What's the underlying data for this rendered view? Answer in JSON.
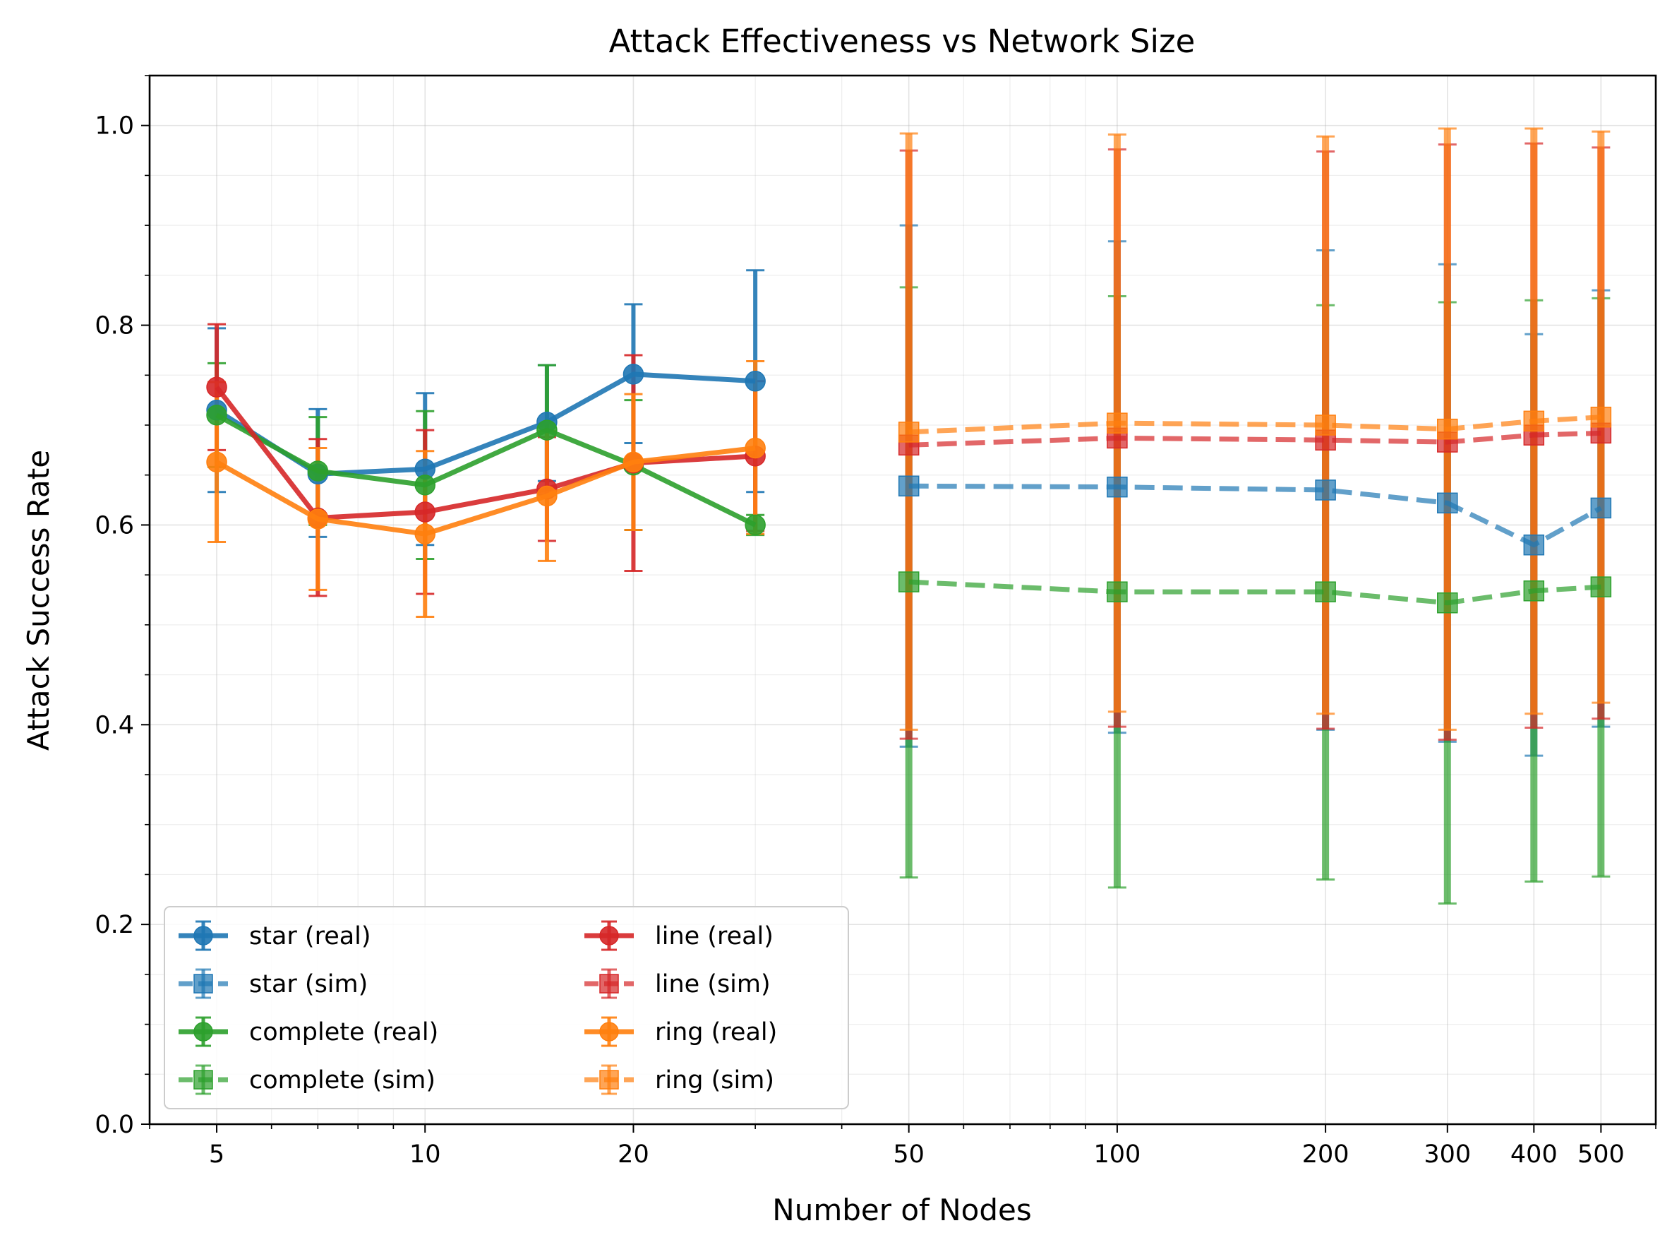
{
  "chart_data": {
    "type": "line",
    "title": "Attack Effectiveness vs Network Size",
    "xlabel": "Number of Nodes",
    "ylabel": "Attack Success Rate",
    "xscale": "log",
    "xlim": [
      4,
      600
    ],
    "ylim": [
      0,
      1.05
    ],
    "grid": true,
    "legend_position": "lower-left",
    "legend_columns": 2,
    "x_tick_labels": [
      "5",
      "10",
      "20",
      "50",
      "100",
      "200",
      "300",
      "400",
      "500"
    ],
    "x_tick_values": [
      5,
      10,
      20,
      50,
      100,
      200,
      300,
      400,
      500
    ],
    "y_tick_labels": [
      "0.0",
      "0.2",
      "0.4",
      "0.6",
      "0.8",
      "1.0"
    ],
    "y_tick_values": [
      0,
      0.2,
      0.4,
      0.6,
      0.8,
      1.0
    ],
    "series": [
      {
        "name": "star (real)",
        "color": "#1f77b4",
        "marker": "circle",
        "linestyle": "solid",
        "x": [
          5,
          7,
          10,
          15,
          20,
          30
        ],
        "y": [
          0.715,
          0.651,
          0.656,
          0.703,
          0.751,
          0.744
        ],
        "err_low": [
          0.633,
          0.588,
          0.58,
          0.644,
          0.682,
          0.633
        ],
        "err_high": [
          0.797,
          0.716,
          0.732,
          0.76,
          0.821,
          0.855
        ]
      },
      {
        "name": "star (sim)",
        "color": "#1f77b4",
        "marker": "square",
        "linestyle": "dashed",
        "x": [
          50,
          100,
          200,
          300,
          400,
          500
        ],
        "y": [
          0.639,
          0.638,
          0.635,
          0.622,
          0.58,
          0.617
        ],
        "err_low": [
          0.378,
          0.392,
          0.395,
          0.383,
          0.369,
          0.398
        ],
        "err_high": [
          0.9,
          0.884,
          0.875,
          0.861,
          0.791,
          0.835
        ]
      },
      {
        "name": "complete (real)",
        "color": "#2ca02c",
        "marker": "circle",
        "linestyle": "solid",
        "x": [
          5,
          7,
          10,
          15,
          20,
          30
        ],
        "y": [
          0.71,
          0.654,
          0.64,
          0.695,
          0.66,
          0.6
        ],
        "err_low": [
          0.658,
          0.6,
          0.566,
          0.63,
          0.595,
          0.59
        ],
        "err_high": [
          0.762,
          0.708,
          0.714,
          0.76,
          0.725,
          0.61
        ]
      },
      {
        "name": "complete (sim)",
        "color": "#2ca02c",
        "marker": "square",
        "linestyle": "dashed",
        "x": [
          50,
          100,
          200,
          300,
          400,
          500
        ],
        "y": [
          0.543,
          0.533,
          0.533,
          0.522,
          0.534,
          0.538
        ],
        "err_low": [
          0.247,
          0.237,
          0.245,
          0.221,
          0.243,
          0.248
        ],
        "err_high": [
          0.838,
          0.829,
          0.82,
          0.823,
          0.825,
          0.827
        ]
      },
      {
        "name": "line (real)",
        "color": "#d62728",
        "marker": "circle",
        "linestyle": "solid",
        "x": [
          5,
          7,
          10,
          15,
          20,
          30
        ],
        "y": [
          0.738,
          0.607,
          0.613,
          0.636,
          0.662,
          0.669
        ],
        "err_low": [
          0.675,
          0.529,
          0.531,
          0.584,
          0.554,
          0.594
        ],
        "err_high": [
          0.801,
          0.686,
          0.695,
          0.688,
          0.77,
          0.744
        ]
      },
      {
        "name": "line (sim)",
        "color": "#d62728",
        "marker": "square",
        "linestyle": "dashed",
        "x": [
          50,
          100,
          200,
          300,
          400,
          500
        ],
        "y": [
          0.68,
          0.687,
          0.685,
          0.683,
          0.69,
          0.692
        ],
        "err_low": [
          0.386,
          0.398,
          0.396,
          0.385,
          0.397,
          0.406
        ],
        "err_high": [
          0.975,
          0.976,
          0.974,
          0.981,
          0.982,
          0.978
        ]
      },
      {
        "name": "ring (real)",
        "color": "#ff7f0e",
        "marker": "circle",
        "linestyle": "solid",
        "x": [
          5,
          7,
          10,
          15,
          20,
          30
        ],
        "y": [
          0.663,
          0.606,
          0.591,
          0.629,
          0.663,
          0.677
        ],
        "err_low": [
          0.583,
          0.535,
          0.508,
          0.564,
          0.595,
          0.591
        ],
        "err_high": [
          0.743,
          0.677,
          0.674,
          0.694,
          0.731,
          0.764
        ]
      },
      {
        "name": "ring (sim)",
        "color": "#ff7f0e",
        "marker": "square",
        "linestyle": "dashed",
        "x": [
          50,
          100,
          200,
          300,
          400,
          500
        ],
        "y": [
          0.693,
          0.702,
          0.7,
          0.696,
          0.704,
          0.708
        ],
        "err_low": [
          0.395,
          0.413,
          0.411,
          0.395,
          0.411,
          0.422
        ],
        "err_high": [
          0.992,
          0.991,
          0.989,
          0.997,
          0.997,
          0.994
        ]
      }
    ]
  }
}
